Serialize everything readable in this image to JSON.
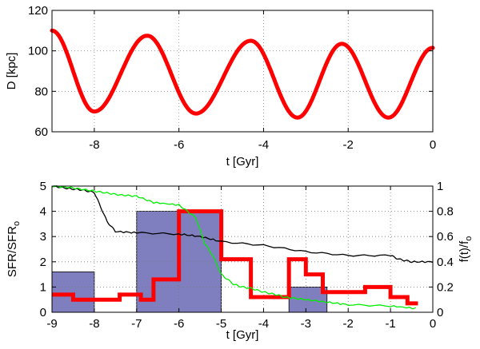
{
  "chart_data": [
    {
      "type": "line",
      "xlabel": "t [Gyr]",
      "ylabel": "D [kpc]",
      "xlim": [
        -9,
        0
      ],
      "ylim": [
        60,
        120
      ],
      "xticks": [
        -8,
        -6,
        -4,
        -2,
        0
      ],
      "yticks": [
        60,
        80,
        100,
        120
      ],
      "grid": true,
      "series": [
        {
          "color": "#ff0000",
          "x": [
            -9.0,
            -8.0,
            -6.75,
            -5.6,
            -4.3,
            -3.2,
            -2.15,
            -1.05,
            0.0
          ],
          "y": [
            110,
            70,
            107.5,
            69,
            105,
            67,
            103.5,
            67,
            101.5
          ]
        }
      ]
    },
    {
      "type": "bar",
      "xlabel": "t [Gyr]",
      "ylabel": "SFR/SFR",
      "ylabel_sub": "o",
      "ylabel_right": "f(t)/f",
      "ylabel_right_sub": "o",
      "xlim": [
        -9,
        0
      ],
      "ylim": [
        0,
        5
      ],
      "ylim_right": [
        0,
        1
      ],
      "xticks": [
        -9,
        -8,
        -7,
        -6,
        -5,
        -4,
        -3,
        -2,
        -1,
        0
      ],
      "yticks": [
        0,
        1,
        2,
        3,
        4,
        5
      ],
      "yticks_right": [
        0,
        0.2,
        0.4,
        0.6,
        0.8,
        1
      ],
      "grid": true,
      "bars": {
        "color": "#7f7fbf",
        "items": [
          {
            "x0": -9.0,
            "x1": -8.0,
            "value": 1.6
          },
          {
            "x0": -7.0,
            "x1": -5.0,
            "value": 4.0
          },
          {
            "x0": -3.4,
            "x1": -2.5,
            "value": 1.0
          }
        ]
      },
      "series": [
        {
          "color": "#ff0000",
          "type": "step",
          "axis": "left",
          "x": [
            -9.0,
            -8.5,
            -8.2,
            -7.4,
            -6.9,
            -6.6,
            -6.0,
            -5.5,
            -5.0,
            -4.3,
            -3.4,
            -3.0,
            -2.6,
            -1.6,
            -1.0,
            -0.6,
            -0.35
          ],
          "y": [
            0.7,
            0.5,
            0.5,
            0.7,
            0.5,
            1.3,
            4.0,
            4.0,
            2.1,
            0.6,
            2.1,
            1.5,
            0.8,
            1.0,
            0.6,
            0.35,
            0.35
          ]
        },
        {
          "color": "#000000",
          "axis": "right",
          "x": [
            -9.0,
            -8.6,
            -8.3,
            -8.0,
            -7.7,
            -7.5,
            -7.0,
            -6.0,
            -5.5,
            -5.0,
            -4.0,
            -3.0,
            -2.0,
            -1.0,
            -0.8,
            -0.5,
            0.0
          ],
          "y": [
            1.0,
            0.98,
            0.97,
            0.95,
            0.72,
            0.64,
            0.63,
            0.62,
            0.6,
            0.56,
            0.53,
            0.48,
            0.45,
            0.45,
            0.42,
            0.4,
            0.4
          ]
        },
        {
          "color": "#00ee00",
          "axis": "right",
          "x": [
            -9.0,
            -8.6,
            -8.2,
            -7.8,
            -7.4,
            -7.0,
            -6.6,
            -6.0,
            -5.6,
            -5.4,
            -5.2,
            -5.0,
            -4.7,
            -4.5,
            -4.3,
            -4.0,
            -3.7,
            -3.5,
            -3.0,
            -2.5,
            -2.0,
            -1.0,
            -0.4
          ],
          "y": [
            1.0,
            0.99,
            0.97,
            0.95,
            0.93,
            0.92,
            0.87,
            0.85,
            0.75,
            0.55,
            0.45,
            0.3,
            0.22,
            0.2,
            0.19,
            0.16,
            0.14,
            0.12,
            0.1,
            0.08,
            0.06,
            0.05,
            0.03
          ]
        }
      ]
    }
  ]
}
